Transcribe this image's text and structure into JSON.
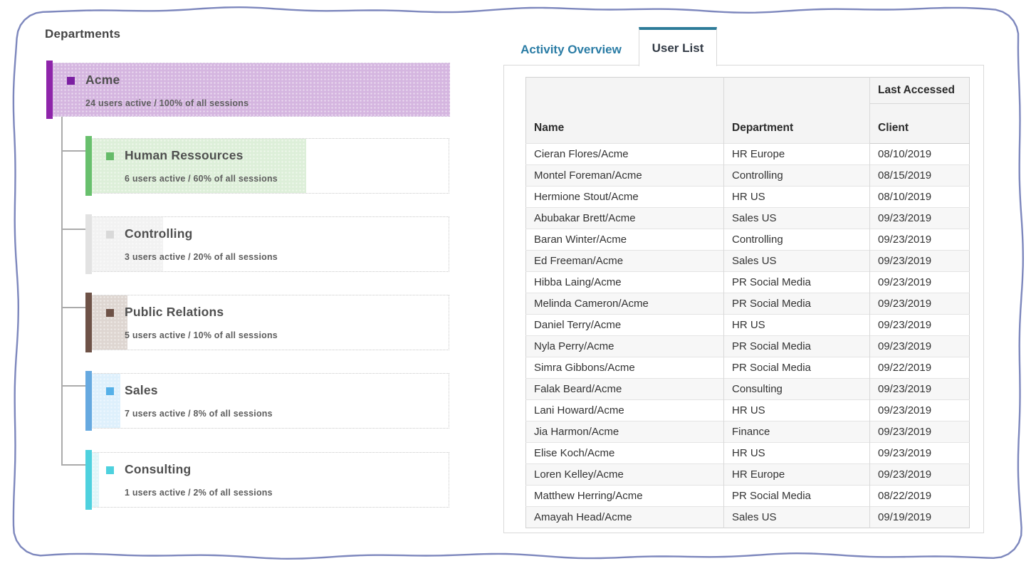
{
  "departments": {
    "title": "Departments",
    "root": {
      "name": "Acme",
      "stats": "24 users active / 100% of all sessions",
      "percent": 100,
      "bar_color": "#8e24aa",
      "fill_color": "#d5b6e0",
      "icon_color": "#7b1fa2"
    },
    "children": [
      {
        "name": "Human Ressources",
        "stats": "6 users active / 60% of all sessions",
        "percent": 60,
        "bar_color": "#68c06d",
        "fill_color": "#ddefd9",
        "icon_color": "#66bb6a"
      },
      {
        "name": "Controlling",
        "stats": "3 users active / 20% of all sessions",
        "percent": 20,
        "bar_color": "#e2e2e2",
        "fill_color": "#f2f2f2",
        "icon_color": "#d9d9d9"
      },
      {
        "name": "Public Relations",
        "stats": "5 users active / 10% of all sessions",
        "percent": 10,
        "bar_color": "#6e5247",
        "fill_color": "#ded6d1",
        "icon_color": "#6e5247"
      },
      {
        "name": "Sales",
        "stats": "7 users active / 8% of all sessions",
        "percent": 8,
        "bar_color": "#66a9e0",
        "fill_color": "#def0fc",
        "icon_color": "#55b0e8"
      },
      {
        "name": "Consulting",
        "stats": "1 users active / 2% of all sessions",
        "percent": 2,
        "bar_color": "#4ed1de",
        "fill_color": "#dff6f9",
        "icon_color": "#4ed1de"
      }
    ]
  },
  "tabs": [
    {
      "label": "Activity Overview",
      "active": false
    },
    {
      "label": "User List",
      "active": true
    }
  ],
  "user_table": {
    "header": {
      "name": "Name",
      "department": "Department",
      "last_accessed": "Last Accessed",
      "client": "Client"
    },
    "rows": [
      {
        "name": "Cieran Flores/Acme",
        "department": "HR Europe",
        "client": "08/10/2019"
      },
      {
        "name": "Montel Foreman/Acme",
        "department": "Controlling",
        "client": "08/15/2019"
      },
      {
        "name": "Hermione Stout/Acme",
        "department": "HR US",
        "client": "08/10/2019"
      },
      {
        "name": "Abubakar Brett/Acme",
        "department": "Sales US",
        "client": "09/23/2019"
      },
      {
        "name": "Baran Winter/Acme",
        "department": "Controlling",
        "client": "09/23/2019"
      },
      {
        "name": "Ed Freeman/Acme",
        "department": "Sales US",
        "client": "09/23/2019"
      },
      {
        "name": "Hibba Laing/Acme",
        "department": "PR Social Media",
        "client": "09/23/2019"
      },
      {
        "name": "Melinda Cameron/Acme",
        "department": "PR Social Media",
        "client": "09/23/2019"
      },
      {
        "name": "Daniel Terry/Acme",
        "department": "HR US",
        "client": "09/23/2019"
      },
      {
        "name": "Nyla Perry/Acme",
        "department": "PR Social Media",
        "client": "09/23/2019"
      },
      {
        "name": "Simra Gibbons/Acme",
        "department": "PR Social Media",
        "client": "09/22/2019"
      },
      {
        "name": "Falak Beard/Acme",
        "department": "Consulting",
        "client": "09/23/2019"
      },
      {
        "name": "Lani Howard/Acme",
        "department": "HR US",
        "client": "09/23/2019"
      },
      {
        "name": "Jia Harmon/Acme",
        "department": "Finance",
        "client": "09/23/2019"
      },
      {
        "name": "Elise Koch/Acme",
        "department": "HR US",
        "client": "09/23/2019"
      },
      {
        "name": "Loren Kelley/Acme",
        "department": "HR Europe",
        "client": "09/23/2019"
      },
      {
        "name": "Matthew Herring/Acme",
        "department": "PR Social Media",
        "client": "08/22/2019"
      },
      {
        "name": "Amayah Head/Acme",
        "department": "Sales US",
        "client": "09/19/2019"
      }
    ]
  },
  "accent": {
    "tab_active_border": "#2e7c99",
    "tab_inactive_text": "#2a7ca5",
    "wavy_border": "#7d87bd",
    "connector": "#ababab"
  }
}
